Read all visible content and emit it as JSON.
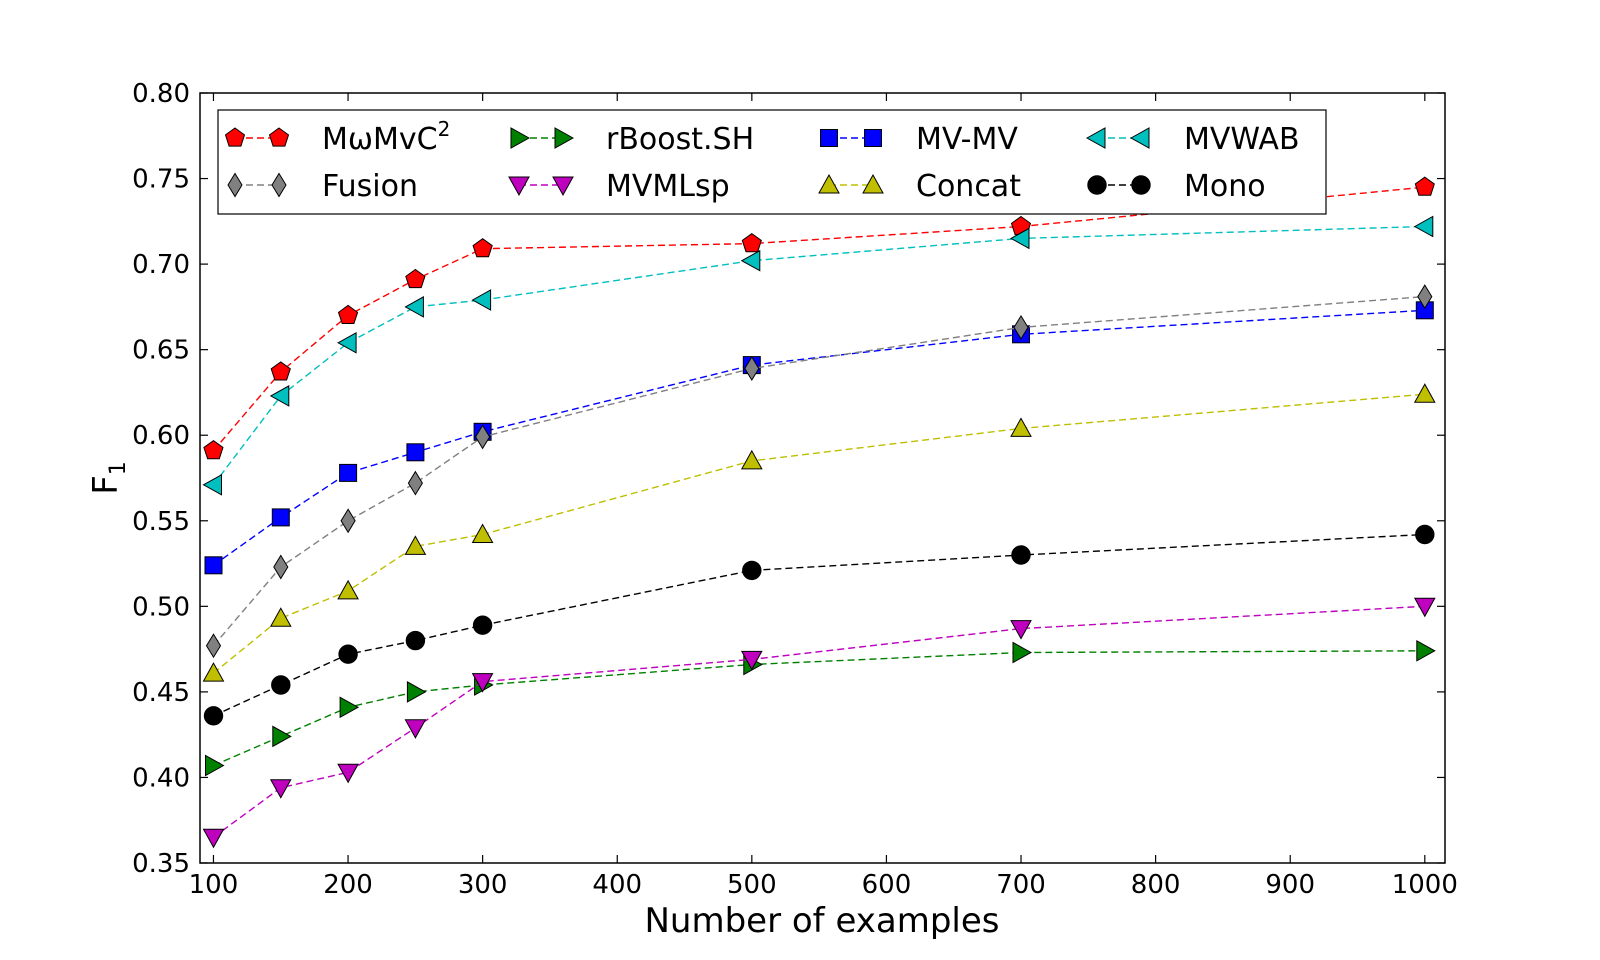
{
  "chart_data": {
    "type": "line",
    "title": "",
    "xlabel": "Number of examples",
    "ylabel": "F",
    "ylabel_subscript": "1",
    "xlim": [
      90,
      1015
    ],
    "ylim": [
      0.35,
      0.8
    ],
    "x": [
      100,
      150,
      200,
      250,
      300,
      500,
      700,
      1000
    ],
    "x_ticks": [
      {
        "value": 100,
        "label": "100"
      },
      {
        "value": 200,
        "label": "200"
      },
      {
        "value": 300,
        "label": "300"
      },
      {
        "value": 400,
        "label": "400"
      },
      {
        "value": 500,
        "label": "500"
      },
      {
        "value": 600,
        "label": "600"
      },
      {
        "value": 700,
        "label": "700"
      },
      {
        "value": 800,
        "label": "800"
      },
      {
        "value": 900,
        "label": "900"
      },
      {
        "value": 1000,
        "label": "1000"
      }
    ],
    "y_ticks": [
      {
        "value": 0.35,
        "label": "0.35"
      },
      {
        "value": 0.4,
        "label": "0.40"
      },
      {
        "value": 0.45,
        "label": "0.45"
      },
      {
        "value": 0.5,
        "label": "0.50"
      },
      {
        "value": 0.55,
        "label": "0.55"
      },
      {
        "value": 0.6,
        "label": "0.60"
      },
      {
        "value": 0.65,
        "label": "0.65"
      },
      {
        "value": 0.7,
        "label": "0.70"
      },
      {
        "value": 0.75,
        "label": "0.75"
      },
      {
        "value": 0.8,
        "label": "0.80"
      }
    ],
    "grid": false,
    "legend_position": "top",
    "series": [
      {
        "name": "MωMvC",
        "name_sup": "2",
        "slug": "mwmvc2",
        "color": "#ff0000",
        "marker": "pentagon",
        "values": [
          0.591,
          0.637,
          0.67,
          0.691,
          0.709,
          0.712,
          0.722,
          0.745
        ]
      },
      {
        "name": "rBoost.SH",
        "slug": "rboost-sh",
        "color": "#008000",
        "marker": "triangle-right",
        "values": [
          0.407,
          0.424,
          0.441,
          0.45,
          0.454,
          0.466,
          0.473,
          0.474
        ]
      },
      {
        "name": "MV-MV",
        "slug": "mv-mv",
        "color": "#0000ff",
        "marker": "square",
        "values": [
          0.524,
          0.552,
          0.578,
          0.59,
          0.602,
          0.641,
          0.659,
          0.673
        ]
      },
      {
        "name": "MVWAB",
        "slug": "mvwab",
        "color": "#00bfbf",
        "marker": "triangle-left",
        "values": [
          0.571,
          0.623,
          0.654,
          0.675,
          0.679,
          0.702,
          0.715,
          0.722
        ]
      },
      {
        "name": "Fusion",
        "slug": "fusion",
        "color": "#808080",
        "marker": "diamond",
        "values": [
          0.477,
          0.523,
          0.55,
          0.572,
          0.599,
          0.639,
          0.663,
          0.681
        ]
      },
      {
        "name": "MVMLsp",
        "slug": "mvmlsp",
        "color": "#bf00bf",
        "marker": "triangle-down",
        "values": [
          0.365,
          0.394,
          0.403,
          0.429,
          0.456,
          0.469,
          0.487,
          0.5
        ]
      },
      {
        "name": "Concat",
        "slug": "concat",
        "color": "#bfbf00",
        "marker": "triangle-up",
        "values": [
          0.461,
          0.493,
          0.509,
          0.535,
          0.542,
          0.585,
          0.604,
          0.624
        ]
      },
      {
        "name": "Mono",
        "slug": "mono",
        "color": "#000000",
        "marker": "circle",
        "values": [
          0.436,
          0.454,
          0.472,
          0.48,
          0.489,
          0.521,
          0.53,
          0.542
        ]
      }
    ]
  }
}
